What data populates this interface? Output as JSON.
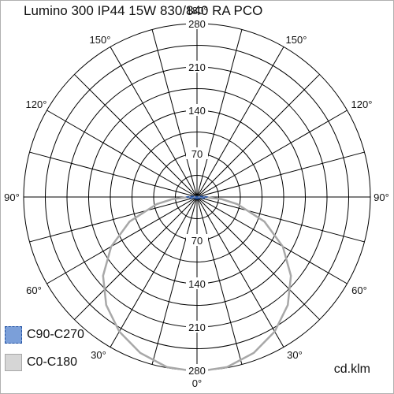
{
  "title": "Lumino 300 IP44 15W 830/840 RA PCO",
  "unit": "cd.klm",
  "legend": [
    {
      "label": "C90-C270",
      "fill": "#7b9fd9",
      "stroke": "#1f4fa0",
      "dashed": true
    },
    {
      "label": "C0-C180",
      "fill": "#d6d6d6",
      "stroke": "#a8a8a8",
      "dashed": false
    }
  ],
  "chart_data": {
    "type": "polar",
    "title": "Lumino 300 IP44 15W 830/840 RA PCO",
    "unit": "cd.klm",
    "r_ticks": [
      70,
      140,
      210,
      280
    ],
    "r_max": 280,
    "angle_labels": [
      "0°",
      "30°",
      "30°",
      "60°",
      "60°",
      "90°",
      "90°",
      "120°",
      "120°",
      "150°",
      "150°",
      "180°"
    ],
    "grid": true,
    "legend_position": "bottom-left",
    "series": [
      {
        "name": "C90-C270",
        "color": "#1f4fa0",
        "angles": [
          0,
          30,
          60,
          70,
          80,
          85,
          90,
          95,
          100,
          110,
          120,
          150,
          180
        ],
        "values": [
          3,
          3,
          4,
          6,
          10,
          14,
          16,
          10,
          5,
          2,
          1,
          0,
          0
        ]
      },
      {
        "name": "C0-C180",
        "color": "#a8a8a8",
        "angles": [
          0,
          10,
          20,
          30,
          40,
          50,
          60,
          70,
          80,
          85,
          90,
          95,
          100,
          120,
          150,
          180
        ],
        "values": [
          282,
          279,
          268,
          251,
          228,
          198,
          160,
          116,
          66,
          40,
          12,
          3,
          1,
          0,
          0,
          0
        ]
      }
    ]
  }
}
